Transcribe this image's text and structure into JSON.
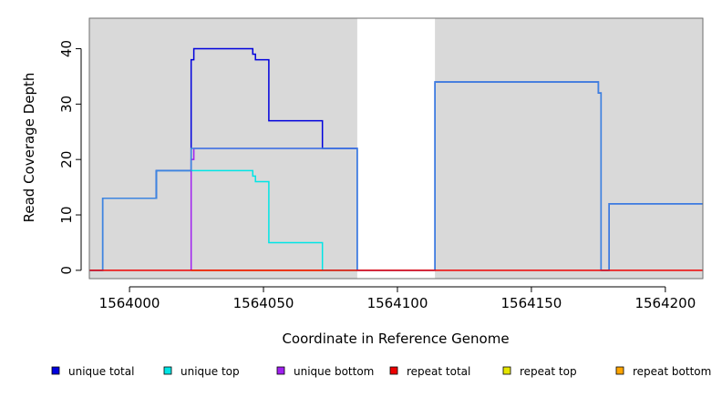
{
  "chart_data": {
    "type": "line",
    "title": "",
    "xlabel": "Coordinate in Reference Genome",
    "ylabel": "Read Coverage Depth",
    "xlim": [
      1563985,
      1564214
    ],
    "ylim": [
      -1.5,
      45.5
    ],
    "x_ticks": [
      1564000,
      1564050,
      1564100,
      1564150,
      1564200
    ],
    "x_tick_labels": [
      "1564000",
      "1564050",
      "1564100",
      "1564150",
      "1564200"
    ],
    "y_ticks": [
      0,
      10,
      20,
      30,
      40
    ],
    "y_tick_labels": [
      "0",
      "10",
      "20",
      "30",
      "40"
    ],
    "grid": false,
    "background_color": "#d9d9d9",
    "gap_region": {
      "x": [
        1564085,
        1564114
      ],
      "color": "#ffffff"
    },
    "legend_position": "bottom",
    "series": [
      {
        "name": "unique total",
        "color": "#0000dd",
        "points": [
          [
            1563985,
            0
          ],
          [
            1563990,
            0
          ],
          [
            1563990,
            13
          ],
          [
            1564010,
            13
          ],
          [
            1564010,
            18
          ],
          [
            1564023,
            18
          ],
          [
            1564023,
            38
          ],
          [
            1564024,
            38
          ],
          [
            1564024,
            40
          ],
          [
            1564046,
            40
          ],
          [
            1564046,
            39
          ],
          [
            1564047,
            39
          ],
          [
            1564047,
            38
          ],
          [
            1564052,
            38
          ],
          [
            1564052,
            27
          ],
          [
            1564072,
            27
          ],
          [
            1564072,
            22
          ],
          [
            1564085,
            22
          ],
          [
            1564085,
            0
          ],
          [
            1564114,
            0
          ],
          [
            1564114,
            34
          ],
          [
            1564175,
            34
          ],
          [
            1564175,
            32
          ],
          [
            1564176,
            32
          ],
          [
            1564176,
            0
          ],
          [
            1564179,
            0
          ],
          [
            1564179,
            12
          ],
          [
            1564214,
            12
          ]
        ]
      },
      {
        "name": "unique top",
        "color": "#00e5e5",
        "points": [
          [
            1563985,
            0
          ],
          [
            1563990,
            0
          ],
          [
            1563990,
            13
          ],
          [
            1564010,
            13
          ],
          [
            1564010,
            18
          ],
          [
            1564046,
            18
          ],
          [
            1564046,
            17
          ],
          [
            1564047,
            17
          ],
          [
            1564047,
            16
          ],
          [
            1564052,
            16
          ],
          [
            1564052,
            5
          ],
          [
            1564072,
            5
          ],
          [
            1564072,
            0
          ],
          [
            1564085,
            0
          ]
        ]
      },
      {
        "name": "unique bottom",
        "color": "#a020f0",
        "points": [
          [
            1564023,
            0
          ],
          [
            1564023,
            20
          ],
          [
            1564024,
            20
          ],
          [
            1564024,
            22
          ],
          [
            1564085,
            22
          ]
        ]
      },
      {
        "name": "repeat total",
        "color": "#ee0000",
        "points": [
          [
            1563985,
            0
          ],
          [
            1564214,
            0
          ]
        ]
      },
      {
        "name": "repeat top",
        "color": "#e5e500",
        "points": [
          [
            1564023,
            0
          ],
          [
            1564085,
            0
          ]
        ]
      },
      {
        "name": "repeat bottom",
        "color": "#ffa500",
        "points": [
          [
            1564023,
            0
          ],
          [
            1564072,
            0
          ]
        ]
      },
      {
        "name": "",
        "color": "#3d85e0",
        "points": [
          [
            1563985,
            0
          ],
          [
            1563990,
            0
          ],
          [
            1563990,
            13
          ],
          [
            1564010,
            13
          ],
          [
            1564010,
            18
          ],
          [
            1564023,
            18
          ],
          [
            1564023,
            22
          ],
          [
            1564085,
            22
          ],
          [
            1564085,
            0
          ],
          [
            1564114,
            0
          ],
          [
            1564114,
            34
          ],
          [
            1564175,
            34
          ],
          [
            1564175,
            32
          ],
          [
            1564176,
            32
          ],
          [
            1564176,
            0
          ],
          [
            1564179,
            0
          ],
          [
            1564179,
            12
          ],
          [
            1564214,
            12
          ]
        ]
      }
    ],
    "legend": [
      {
        "label": "unique total",
        "color": "#0000dd"
      },
      {
        "label": "unique top",
        "color": "#00e5e5"
      },
      {
        "label": "unique bottom",
        "color": "#a020f0"
      },
      {
        "label": "repeat total",
        "color": "#ee0000"
      },
      {
        "label": "repeat top",
        "color": "#e5e500"
      },
      {
        "label": "repeat bottom",
        "color": "#ffa500"
      }
    ]
  }
}
